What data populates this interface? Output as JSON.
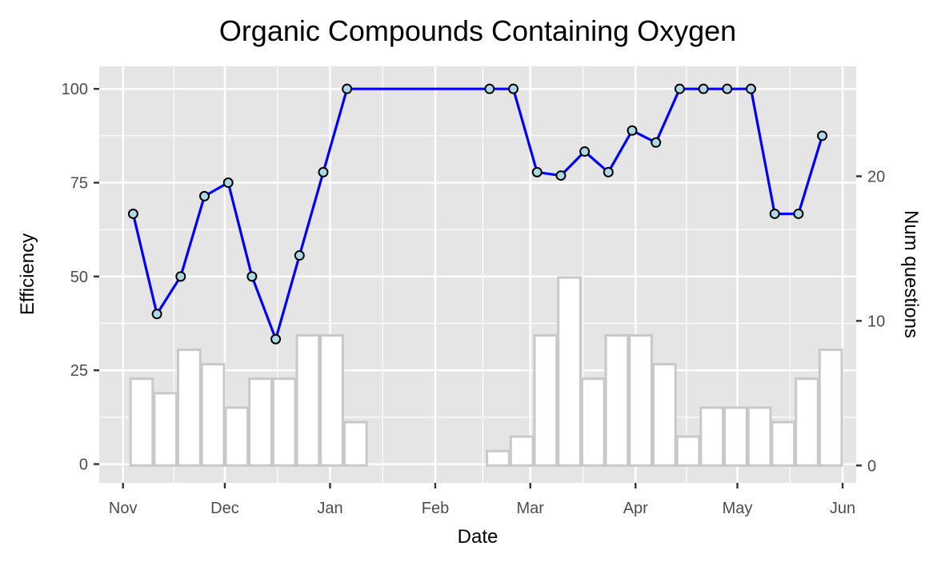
{
  "chart_data": {
    "type": "line",
    "title": "Organic Compounds Containing Oxygen",
    "xlabel": "Date",
    "ylabel": "Efficiency",
    "y2label": "Num questions",
    "xlim": [
      "2012-10-25",
      "2013-06-05"
    ],
    "ylim": [
      -5,
      106
    ],
    "y2lim": [
      -1.2,
      27.6
    ],
    "x_ticks": [
      {
        "date": "2012-11-01",
        "label": "Nov"
      },
      {
        "date": "2012-12-01",
        "label": "Dec"
      },
      {
        "date": "2013-01-01",
        "label": "Jan"
      },
      {
        "date": "2013-02-01",
        "label": "Feb"
      },
      {
        "date": "2013-03-01",
        "label": "Mar"
      },
      {
        "date": "2013-04-01",
        "label": "Apr"
      },
      {
        "date": "2013-05-01",
        "label": "May"
      },
      {
        "date": "2013-06-01",
        "label": "Jun"
      }
    ],
    "y_ticks": [
      0,
      25,
      50,
      75,
      100
    ],
    "y2_ticks": [
      0,
      10,
      20
    ],
    "grid": true,
    "colors": {
      "panel": "#e5e5e5",
      "grid": "#ffffff",
      "line": "#0000ff",
      "point_fill": "#add8e6",
      "point_stroke": "#000000",
      "bar_fill": "#ffffff",
      "bar_stroke": "#c8c8c8"
    },
    "series": [
      {
        "type": "line",
        "points": [
          {
            "x": "2012-11-04",
            "y": 66.7
          },
          {
            "x": "2012-11-11",
            "y": 40
          },
          {
            "x": "2012-11-18",
            "y": 50
          },
          {
            "x": "2012-11-25",
            "y": 71.4
          },
          {
            "x": "2012-12-02",
            "y": 75
          },
          {
            "x": "2012-12-09",
            "y": 50
          },
          {
            "x": "2012-12-16",
            "y": 33.3
          },
          {
            "x": "2012-12-23",
            "y": 55.6
          },
          {
            "x": "2012-12-30",
            "y": 77.8
          },
          {
            "x": "2013-01-06",
            "y": 100
          },
          {
            "x": "2013-02-17",
            "y": 100
          },
          {
            "x": "2013-02-24",
            "y": 100
          },
          {
            "x": "2013-03-03",
            "y": 77.8
          },
          {
            "x": "2013-03-10",
            "y": 76.9
          },
          {
            "x": "2013-03-17",
            "y": 83.3
          },
          {
            "x": "2013-03-24",
            "y": 77.8
          },
          {
            "x": "2013-03-31",
            "y": 88.9
          },
          {
            "x": "2013-04-07",
            "y": 85.7
          },
          {
            "x": "2013-04-14",
            "y": 100
          },
          {
            "x": "2013-04-21",
            "y": 100
          },
          {
            "x": "2013-04-28",
            "y": 100
          },
          {
            "x": "2013-05-05",
            "y": 100
          },
          {
            "x": "2013-05-12",
            "y": 66.7
          },
          {
            "x": "2013-05-19",
            "y": 66.7
          },
          {
            "x": "2013-05-26",
            "y": 87.5
          }
        ]
      },
      {
        "type": "bar",
        "axis": "right",
        "bars": [
          {
            "x": "2012-11-03",
            "count": 6
          },
          {
            "x": "2012-11-10",
            "count": 5
          },
          {
            "x": "2012-11-17",
            "count": 8
          },
          {
            "x": "2012-11-24",
            "count": 7
          },
          {
            "x": "2012-12-01",
            "count": 4
          },
          {
            "x": "2012-12-08",
            "count": 6
          },
          {
            "x": "2012-12-15",
            "count": 6
          },
          {
            "x": "2012-12-22",
            "count": 9
          },
          {
            "x": "2012-12-29",
            "count": 9
          },
          {
            "x": "2013-01-05",
            "count": 3
          },
          {
            "x": "2013-02-16",
            "count": 1
          },
          {
            "x": "2013-02-23",
            "count": 2
          },
          {
            "x": "2013-03-02",
            "count": 9
          },
          {
            "x": "2013-03-09",
            "count": 13
          },
          {
            "x": "2013-03-16",
            "count": 6
          },
          {
            "x": "2013-03-23",
            "count": 9
          },
          {
            "x": "2013-03-30",
            "count": 9
          },
          {
            "x": "2013-04-06",
            "count": 7
          },
          {
            "x": "2013-04-13",
            "count": 2
          },
          {
            "x": "2013-04-20",
            "count": 4
          },
          {
            "x": "2013-04-27",
            "count": 4
          },
          {
            "x": "2013-05-04",
            "count": 4
          },
          {
            "x": "2013-05-11",
            "count": 3
          },
          {
            "x": "2013-05-18",
            "count": 6
          },
          {
            "x": "2013-05-25",
            "count": 8
          }
        ]
      }
    ]
  }
}
